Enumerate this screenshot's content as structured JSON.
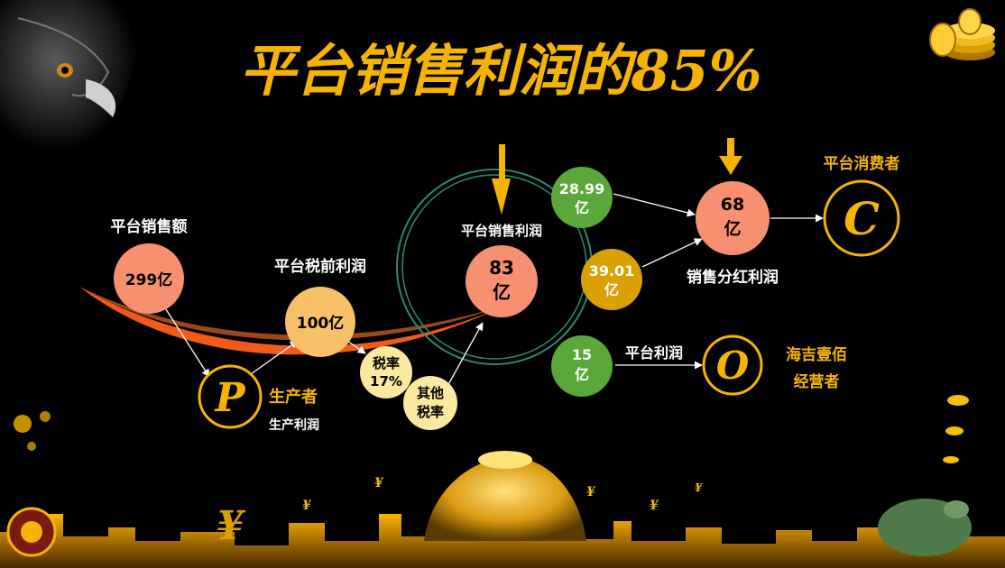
{
  "title": "平台销售利润的85%",
  "colors": {
    "background": "#000000",
    "gold": "#f5b400",
    "salmon": "#f79070",
    "peach": "#f9c06a",
    "cream": "#fbe9a0",
    "green": "#5aa83a",
    "dark_gold": "#d9a000",
    "ring": "#2b8a6e",
    "swoosh": "#f25a1a"
  },
  "nodes": {
    "sales": {
      "heading": "平台销售额",
      "value": "299亿"
    },
    "pretax": {
      "heading": "平台税前利润",
      "value": "100亿"
    },
    "producer": {
      "letter": "P",
      "label": "生产者",
      "sublabel": "生产利润"
    },
    "tax": {
      "line1": "税率",
      "line2": "17%"
    },
    "other_tax": {
      "line1": "其他",
      "line2": "税率"
    },
    "platform_profit": {
      "heading": "平台销售利润",
      "line1": "83",
      "line2": "亿"
    },
    "share_1": {
      "line1": "28.99",
      "line2": "亿"
    },
    "share_2": {
      "line1": "39.01",
      "line2": "亿"
    },
    "share_3": {
      "line1": "15",
      "line2": "亿"
    },
    "dividend": {
      "line1": "68",
      "line2": "亿",
      "label": "销售分红利润"
    },
    "consumer": {
      "letter": "C",
      "label": "平台消费者"
    },
    "operator": {
      "letter": "O",
      "label_line1": "海吉壹佰",
      "label_line2": "经营者",
      "edge_label": "平台利润"
    }
  }
}
